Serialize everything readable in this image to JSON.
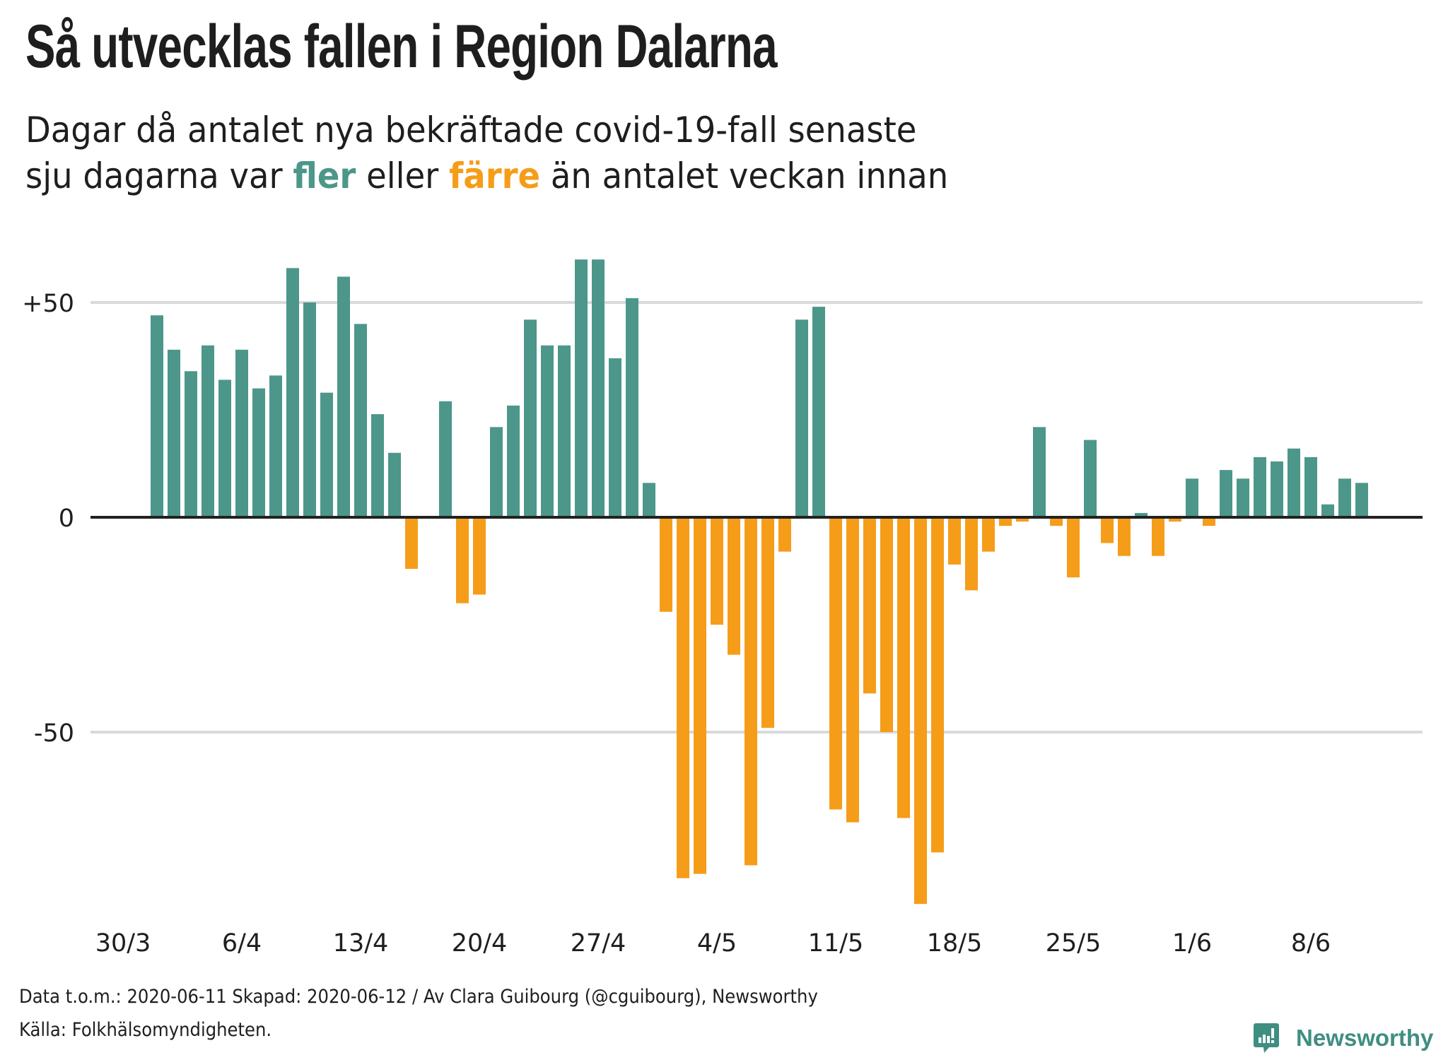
{
  "header": {
    "title": "Så utvecklas fallen i Region Dalarna",
    "subtitle_line1": "Dagar då antalet nya bekräftade covid-19-fall senaste",
    "subtitle_line2_pre": "sju dagarna var ",
    "subtitle_more": "fler",
    "subtitle_mid": " eller ",
    "subtitle_fewer": "färre",
    "subtitle_post": " än antalet veckan innan"
  },
  "colors": {
    "more": "#4c978a",
    "fewer": "#f59d19",
    "axis": "#222222",
    "grid": "#d9d9d9"
  },
  "chart_data": {
    "type": "bar",
    "title": "Så utvecklas fallen i Region Dalarna",
    "subtitle": "Dagar då antalet nya bekräftade covid-19-fall senaste sju dagarna var fler eller färre än antalet veckan innan",
    "xlabel": "",
    "ylabel": "",
    "ylim": [
      -92,
      63
    ],
    "grid": true,
    "yticks": [
      {
        "value": 50,
        "label": "+50"
      },
      {
        "value": 0,
        "label": "0"
      },
      {
        "value": -50,
        "label": "-50"
      }
    ],
    "xticks": [
      {
        "date": "2020-03-30",
        "label": "30/3"
      },
      {
        "date": "2020-04-06",
        "label": "6/4"
      },
      {
        "date": "2020-04-13",
        "label": "13/4"
      },
      {
        "date": "2020-04-20",
        "label": "20/4"
      },
      {
        "date": "2020-04-27",
        "label": "27/4"
      },
      {
        "date": "2020-05-04",
        "label": "4/5"
      },
      {
        "date": "2020-05-11",
        "label": "11/5"
      },
      {
        "date": "2020-05-18",
        "label": "18/5"
      },
      {
        "date": "2020-05-25",
        "label": "25/5"
      },
      {
        "date": "2020-06-01",
        "label": "1/6"
      },
      {
        "date": "2020-06-08",
        "label": "8/6"
      }
    ],
    "x_start": "2020-03-30",
    "first_date": "2020-04-01",
    "last_date": "2020-06-11",
    "legend": [
      {
        "name": "fler",
        "color": "#4c978a"
      },
      {
        "name": "färre",
        "color": "#f59d19"
      }
    ],
    "values": [
      47,
      39,
      34,
      40,
      32,
      39,
      30,
      33,
      58,
      50,
      29,
      56,
      45,
      24,
      15,
      -12,
      0,
      27,
      -20,
      -18,
      21,
      26,
      46,
      40,
      40,
      60,
      60,
      37,
      51,
      8,
      -22,
      -84,
      -83,
      -25,
      -32,
      -81,
      -49,
      -8,
      46,
      49,
      -68,
      -71,
      -41,
      -50,
      -70,
      -90,
      -78,
      -11,
      -17,
      -8,
      -2,
      -1,
      21,
      -2,
      -14,
      18,
      -6,
      -9,
      1,
      -9,
      -1,
      9,
      -2,
      11,
      9,
      14,
      13,
      16,
      14,
      3,
      9,
      8
    ]
  },
  "footer": {
    "line1": "Data t.o.m.: 2020-06-11 Skapad: 2020-06-12 / Av Clara Guibourg (@cguibourg), Newsworthy",
    "line2": "Källa: Folkhälsomyndigheten."
  },
  "logo": {
    "icon": "newsworthy-chart-bubble-icon",
    "text": "Newsworthy"
  }
}
